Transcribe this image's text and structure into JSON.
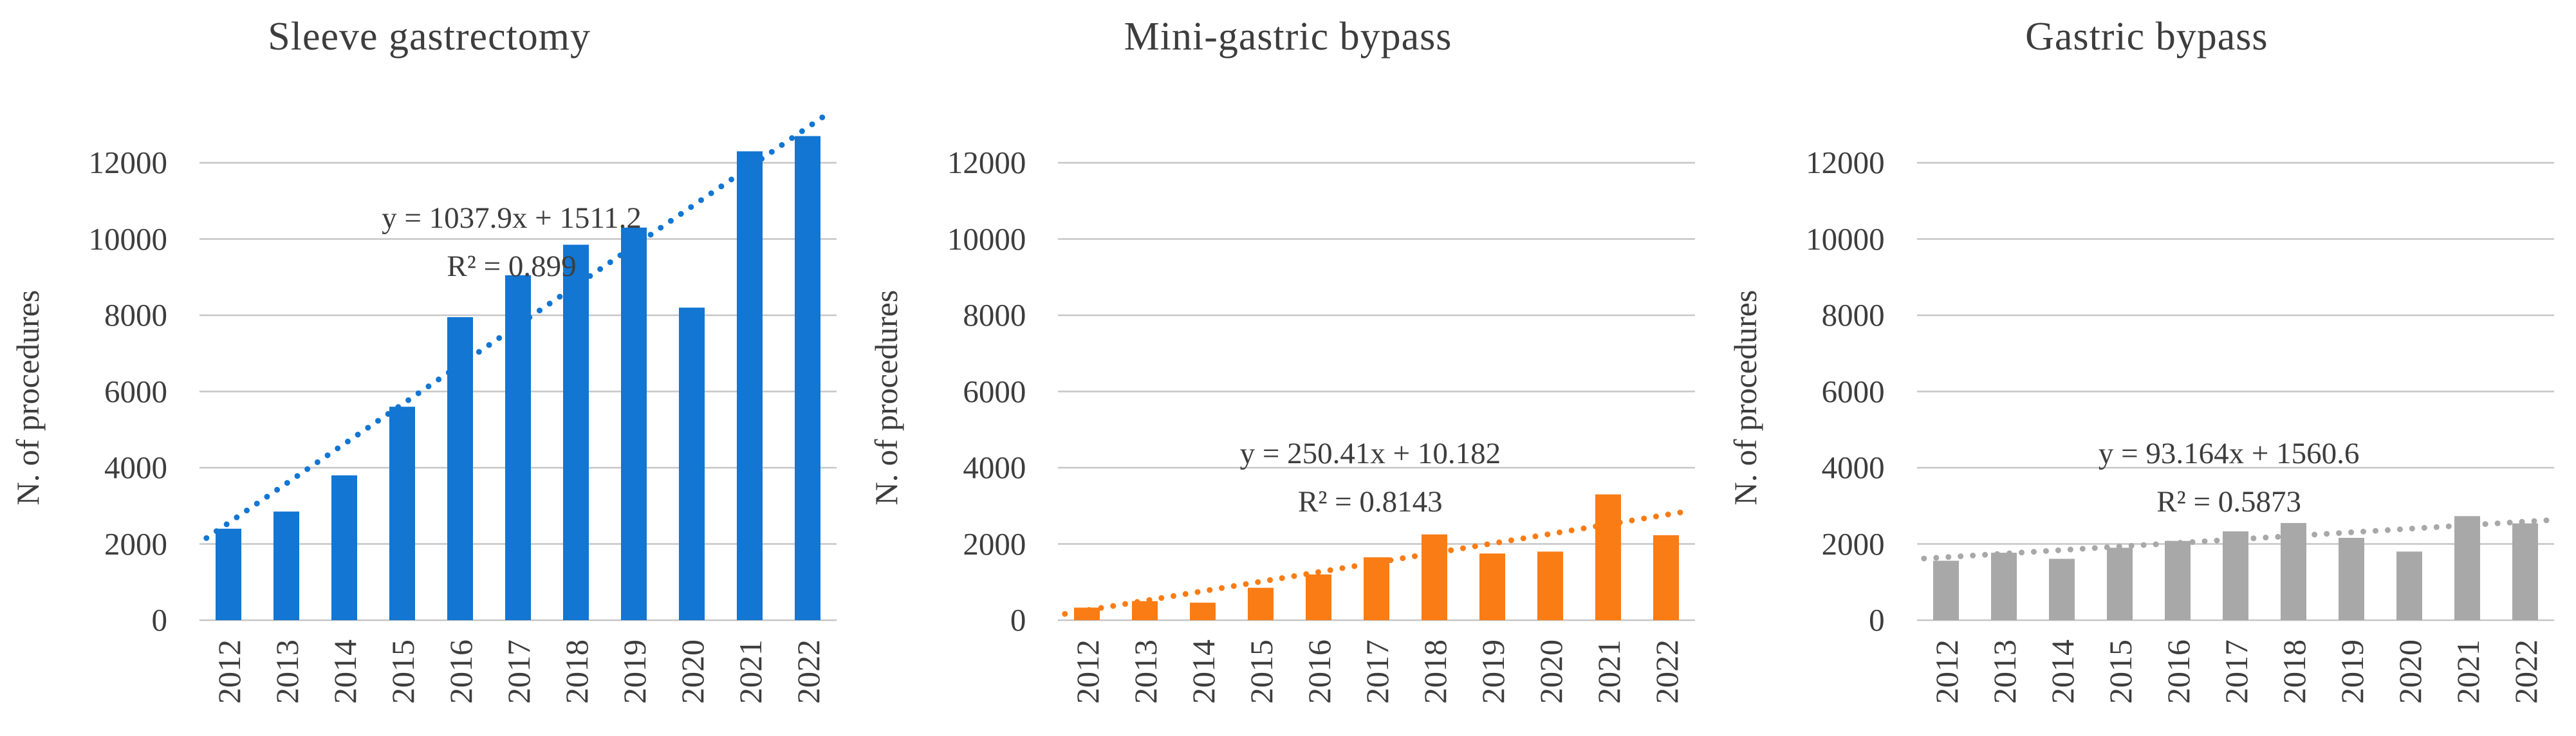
{
  "figure": {
    "y_axis_title": "N. of procedures"
  },
  "chart_data": [
    {
      "type": "bar",
      "title": "Sleeve gastrectomy",
      "xlabel": "",
      "ylabel": "N. of procedures",
      "categories": [
        "2012",
        "2013",
        "2014",
        "2015",
        "2016",
        "2017",
        "2018",
        "2019",
        "2020",
        "2021",
        "2022"
      ],
      "values": [
        2400,
        2850,
        3800,
        5600,
        7950,
        9050,
        9850,
        10300,
        8200,
        12300,
        12700
      ],
      "ylim": [
        0,
        12000
      ],
      "yticks": [
        0,
        2000,
        4000,
        6000,
        8000,
        10000,
        12000
      ],
      "grid": true,
      "legend": "none",
      "bar_color": "#1276d2",
      "trendline": {
        "style": "dotted",
        "color": "#1276d2",
        "slope": 1037.9,
        "intercept": 1511.2,
        "r2": 0.899,
        "equation_label": "y = 1037.9x + 1511.2",
        "r2_label": "R² = 0.899"
      }
    },
    {
      "type": "bar",
      "title": "Mini-gastric bypass",
      "xlabel": "",
      "ylabel": "N. of procedures",
      "categories": [
        "2012",
        "2013",
        "2014",
        "2015",
        "2016",
        "2017",
        "2018",
        "2019",
        "2020",
        "2021",
        "2022"
      ],
      "values": [
        330,
        500,
        460,
        850,
        1200,
        1650,
        2250,
        1750,
        1800,
        3300,
        2230
      ],
      "ylim": [
        0,
        12000
      ],
      "yticks": [
        0,
        2000,
        4000,
        6000,
        8000,
        10000,
        12000
      ],
      "grid": true,
      "legend": "none",
      "bar_color": "#f97c15",
      "trendline": {
        "style": "dotted",
        "color": "#f97c15",
        "slope": 250.41,
        "intercept": 10.182,
        "r2": 0.8143,
        "equation_label": "y = 250.41x + 10.182",
        "r2_label": "R² = 0.8143"
      }
    },
    {
      "type": "bar",
      "title": "Gastric bypass",
      "xlabel": "",
      "ylabel": "N. of procedures",
      "categories": [
        "2012",
        "2013",
        "2014",
        "2015",
        "2016",
        "2017",
        "2018",
        "2019",
        "2020",
        "2021",
        "2022"
      ],
      "values": [
        1560,
        1770,
        1610,
        1900,
        2080,
        2330,
        2550,
        2160,
        1800,
        2730,
        2540
      ],
      "ylim": [
        0,
        12000
      ],
      "yticks": [
        0,
        2000,
        4000,
        6000,
        8000,
        10000,
        12000
      ],
      "grid": true,
      "legend": "none",
      "bar_color": "#a8a8a8",
      "trendline": {
        "style": "dotted",
        "color": "#a8a8a8",
        "slope": 93.164,
        "intercept": 1560.6,
        "r2": 0.5873,
        "equation_label": "y = 93.164x + 1560.6",
        "r2_label": "R² = 0.5873"
      }
    }
  ]
}
